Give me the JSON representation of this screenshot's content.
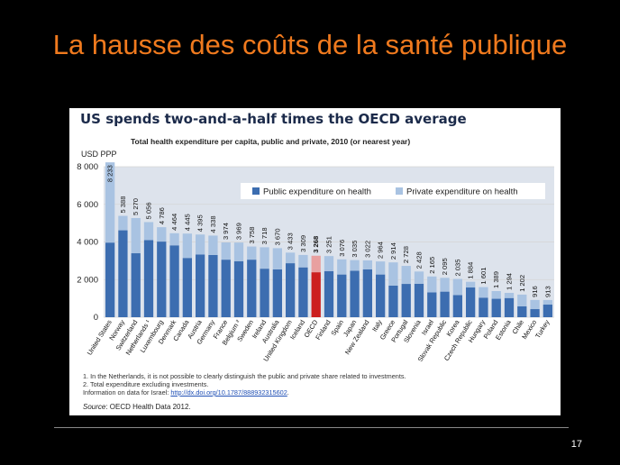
{
  "slide": {
    "title": "La hausse des coûts de la santé publique",
    "page_number": "17"
  },
  "notes": {
    "note1": "1.  In the Netherlands, it is not possible to clearly distinguish the public and private share related to investments.",
    "note2": "2.  Total expenditure excluding investments.",
    "info_prefix": "Information on data for Israel: ",
    "info_link": "http://dx.doi.org/10.1787/888932315602",
    "info_suffix": ".",
    "source_label": "Source",
    "source_text": ": OECD Health Data 2012."
  },
  "chart_data": {
    "type": "bar",
    "title": "US spends two-and-a-half times the OECD average",
    "subtitle": "Total health expenditure per capita, public and private, 2010 (or nearest year)",
    "ylabel": "USD PPP",
    "ylim": [
      0,
      8000
    ],
    "yticks": [
      0,
      2000,
      4000,
      6000,
      8000
    ],
    "ytick_labels": [
      "0",
      "2 000",
      "4 000",
      "6 000",
      "8 000"
    ],
    "stacked": true,
    "legend_position": "top-right",
    "highlight_category": "OECD",
    "colors": {
      "public": "#3c6db0",
      "private": "#a9c3e2",
      "highlight_public": "#cc1f1f",
      "highlight_private": "#e8a0a0",
      "grid": "#d5d5d5",
      "chart_background": "#dde3ec"
    },
    "categories": [
      "United States",
      "Norway",
      "Switzerland",
      "Netherlands ¹",
      "Luxembourg",
      "Denmark",
      "Canada",
      "Austria",
      "Germany",
      "France",
      "Belgium ²",
      "Sweden",
      "Ireland",
      "Australia",
      "United Kingdom",
      "Iceland",
      "OECD",
      "Finland",
      "Spain",
      "Japan",
      "New Zealand",
      "Italy",
      "Greece",
      "Portugal",
      "Slovenia",
      "Israel",
      "Slovak Republic",
      "Korea",
      "Czech Republic",
      "Hungary",
      "Poland",
      "Estonia",
      "Chile",
      "Mexico",
      "Turkey"
    ],
    "total_labels": [
      "8 233",
      "5 388",
      "5 270",
      "5 056",
      "4 786",
      "4 464",
      "4 445",
      "4 395",
      "4 338",
      "3 974",
      "3 969",
      "3 758",
      "3 718",
      "3 670",
      "3 433",
      "3 309",
      "3 268",
      "3 251",
      "3 076",
      "3 035",
      "3 022",
      "2 964",
      "2 914",
      "2 728",
      "2 428",
      "2 165",
      "2 095",
      "2 035",
      "1 884",
      "1 601",
      "1 389",
      "1 294",
      "1 202",
      "916",
      "913"
    ],
    "series": [
      {
        "name": "Public expenditure on health",
        "values": [
          3967,
          4620,
          3400,
          4100,
          4020,
          3820,
          3150,
          3330,
          3310,
          3060,
          2980,
          3060,
          2580,
          2540,
          2870,
          2650,
          2390,
          2450,
          2270,
          2470,
          2540,
          2270,
          1680,
          1770,
          1780,
          1320,
          1360,
          1180,
          1580,
          1040,
          980,
          1020,
          580,
          430,
          670
        ]
      },
      {
        "name": "Private expenditure on health",
        "values": [
          4266,
          768,
          1870,
          956,
          766,
          644,
          1295,
          1065,
          1028,
          914,
          989,
          698,
          1138,
          1130,
          563,
          659,
          878,
          801,
          806,
          565,
          482,
          694,
          1234,
          958,
          648,
          845,
          735,
          855,
          304,
          561,
          409,
          274,
          622,
          486,
          243
        ]
      }
    ]
  }
}
